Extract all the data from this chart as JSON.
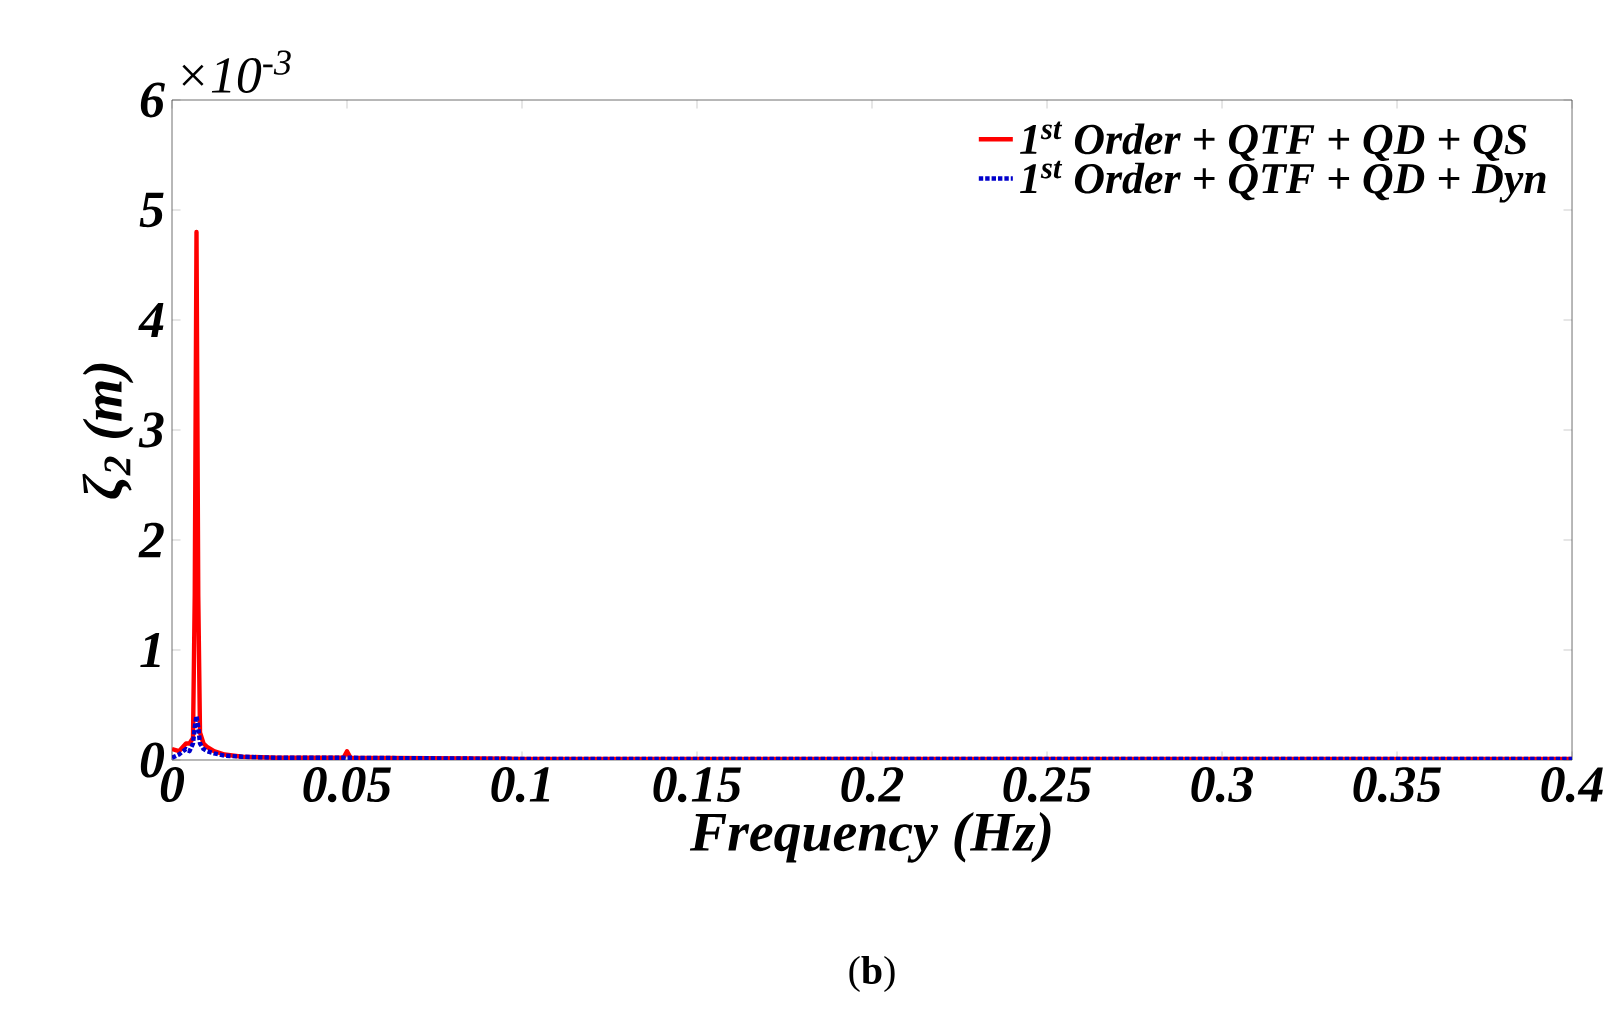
{
  "chart_data": {
    "type": "line",
    "xlabel": "Frequency (Hz)",
    "ylabel": "ζ$_{2}$ (m)",
    "annotations": [
      "×10$^{-3}$",
      "(**b**)"
    ],
    "x": [
      0,
      0.002,
      0.004,
      0.005,
      0.006,
      0.0065,
      0.007,
      0.0075,
      0.008,
      0.009,
      0.01,
      0.012,
      0.015,
      0.02,
      0.03,
      0.049,
      0.05,
      0.051,
      0.1,
      0.2,
      0.3,
      0.4
    ],
    "series": [
      {
        "name": "1$^{st}$ Order + QTF + QD + QS",
        "color": "#ff0000",
        "line_style": "solid",
        "values": [
          0.1,
          0.08,
          0.15,
          0.15,
          0.2,
          1.5,
          4.8,
          1.5,
          0.25,
          0.15,
          0.12,
          0.08,
          0.05,
          0.03,
          0.02,
          0.02,
          0.08,
          0.02,
          0.01,
          0.01,
          0.01,
          0.01
        ]
      },
      {
        "name": "1$^{st}$ Order + QTF + QD + Dyn",
        "color": "#0000cc",
        "line_style": "dotted",
        "values": [
          0.02,
          0.05,
          0.1,
          0.08,
          0.15,
          0.3,
          0.4,
          0.3,
          0.15,
          0.1,
          0.08,
          0.06,
          0.04,
          0.03,
          0.02,
          0.02,
          0.02,
          0.02,
          0.01,
          0.01,
          0.01,
          0.01
        ]
      }
    ],
    "xlim": [
      0,
      0.4
    ],
    "xticks": [
      0,
      0.05,
      0.1,
      0.15,
      0.2,
      0.25,
      0.3,
      0.35,
      0.4
    ],
    "ylim": [
      0,
      6
    ],
    "yticks": [
      0,
      1,
      2,
      3,
      4,
      5,
      6
    ],
    "grid": false,
    "legend": "top right",
    "marker": "none"
  }
}
